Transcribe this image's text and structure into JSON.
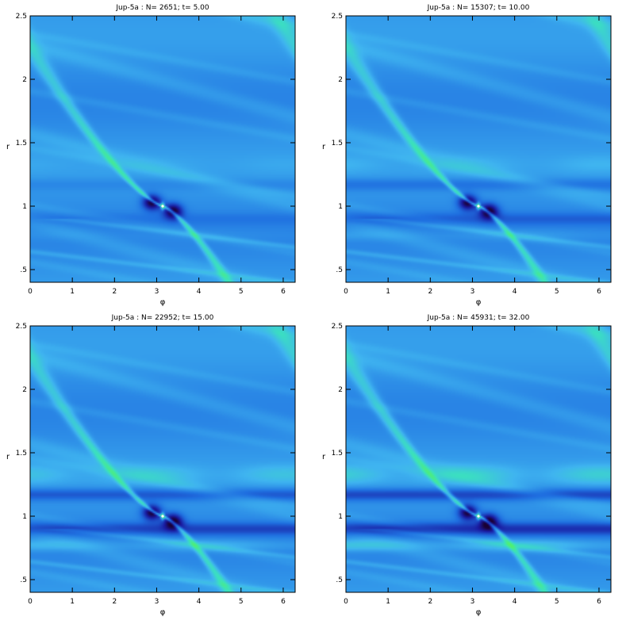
{
  "chart_data": [
    {
      "type": "heatmap",
      "title": "Jup-5a : N=   2651; t=    5.00",
      "xlabel": "φ",
      "ylabel": "r",
      "xlim": [
        0,
        6.283
      ],
      "ylim": [
        0.4,
        2.5
      ],
      "xticks": [
        "0",
        "1",
        "2",
        "3",
        "4",
        "5",
        "6"
      ],
      "yticks": [
        ".5",
        "1",
        "1.5",
        "2",
        "2.5"
      ],
      "colorscale": [
        "#1a0033",
        "#1a1aa0",
        "#1f6fe0",
        "#3fb4f0",
        "#3be0c0",
        "#50f070"
      ],
      "planet": {
        "phi": 3.14159,
        "r": 1.0
      },
      "wave_strength": 1.0,
      "ring_strength": 0.15,
      "gap_depth": 0.25
    },
    {
      "type": "heatmap",
      "title": "Jup-5a : N=  15307; t=   10.00",
      "xlabel": "φ",
      "ylabel": "r",
      "xlim": [
        0,
        6.283
      ],
      "ylim": [
        0.4,
        2.5
      ],
      "xticks": [
        "0",
        "1",
        "2",
        "3",
        "4",
        "5",
        "6"
      ],
      "yticks": [
        ".5",
        "1",
        "1.5",
        "2",
        "2.5"
      ],
      "colorscale": [
        "#1a0033",
        "#1a1aa0",
        "#1f6fe0",
        "#3fb4f0",
        "#3be0c0",
        "#50f070"
      ],
      "planet": {
        "phi": 3.14159,
        "r": 1.0
      },
      "wave_strength": 1.0,
      "ring_strength": 0.35,
      "gap_depth": 0.5
    },
    {
      "type": "heatmap",
      "title": "Jup-5a : N=  22952; t=   15.00",
      "xlabel": "φ",
      "ylabel": "r",
      "xlim": [
        0,
        6.283
      ],
      "ylim": [
        0.4,
        2.5
      ],
      "xticks": [
        "0",
        "1",
        "2",
        "3",
        "4",
        "5",
        "6"
      ],
      "yticks": [
        ".5",
        "1",
        "1.5",
        "2",
        "2.5"
      ],
      "colorscale": [
        "#1a0033",
        "#1a1aa0",
        "#1f6fe0",
        "#3fb4f0",
        "#3be0c0",
        "#50f070"
      ],
      "planet": {
        "phi": 3.14159,
        "r": 1.0
      },
      "wave_strength": 1.0,
      "ring_strength": 0.7,
      "gap_depth": 0.8
    },
    {
      "type": "heatmap",
      "title": "Jup-5a : N=  45931; t=   32.00",
      "xlabel": "φ",
      "ylabel": "r",
      "xlim": [
        0,
        6.283
      ],
      "ylim": [
        0.4,
        2.5
      ],
      "xticks": [
        "0",
        "1",
        "2",
        "3",
        "4",
        "5",
        "6"
      ],
      "yticks": [
        ".5",
        "1",
        "1.5",
        "2",
        "2.5"
      ],
      "colorscale": [
        "#1a0033",
        "#1a1aa0",
        "#1f6fe0",
        "#3fb4f0",
        "#3be0c0",
        "#50f070"
      ],
      "planet": {
        "phi": 3.14159,
        "r": 1.0
      },
      "wave_strength": 1.0,
      "ring_strength": 1.0,
      "gap_depth": 1.0
    }
  ]
}
